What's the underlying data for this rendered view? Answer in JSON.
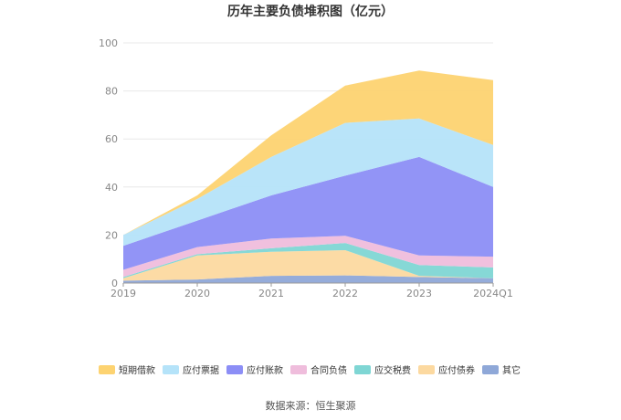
{
  "chart_data": {
    "type": "area",
    "stacked": true,
    "title": "历年主要负债堆积图（亿元）",
    "source": "数据来源：恒生聚源",
    "categories": [
      "2019",
      "2020",
      "2021",
      "2022",
      "2023",
      "2024Q1"
    ],
    "ylim": [
      0,
      100
    ],
    "yticks": [
      0,
      20,
      40,
      60,
      80,
      100
    ],
    "grid": true,
    "legend_position": "bottom",
    "series": [
      {
        "name": "其它",
        "color": "#8fa8d8",
        "values": [
          1.0,
          1.5,
          3.0,
          3.2,
          2.5,
          2.0
        ]
      },
      {
        "name": "应付债券",
        "color": "#fcd9a0",
        "values": [
          1.0,
          10.0,
          10.0,
          10.5,
          0.5,
          0.0
        ]
      },
      {
        "name": "应交税费",
        "color": "#7fd6d4",
        "values": [
          0.5,
          0.5,
          1.5,
          3.0,
          4.5,
          4.5
        ]
      },
      {
        "name": "合同负债",
        "color": "#efbddc",
        "values": [
          3.0,
          3.0,
          4.0,
          3.0,
          4.0,
          4.5
        ]
      },
      {
        "name": "应付账款",
        "color": "#8c8ef6",
        "values": [
          10.0,
          11.0,
          18.0,
          25.0,
          41.0,
          29.0
        ]
      },
      {
        "name": "应付票据",
        "color": "#b5e3f9",
        "values": [
          4.5,
          9.0,
          16.0,
          22.0,
          16.0,
          17.5
        ]
      },
      {
        "name": "短期借款",
        "color": "#fdd371",
        "values": [
          0.0,
          1.5,
          9.0,
          15.5,
          20.0,
          27.0
        ]
      }
    ],
    "legend_order": [
      "短期借款",
      "应付票据",
      "应付账款",
      "合同负债",
      "应交税费",
      "应付债券",
      "其它"
    ]
  }
}
